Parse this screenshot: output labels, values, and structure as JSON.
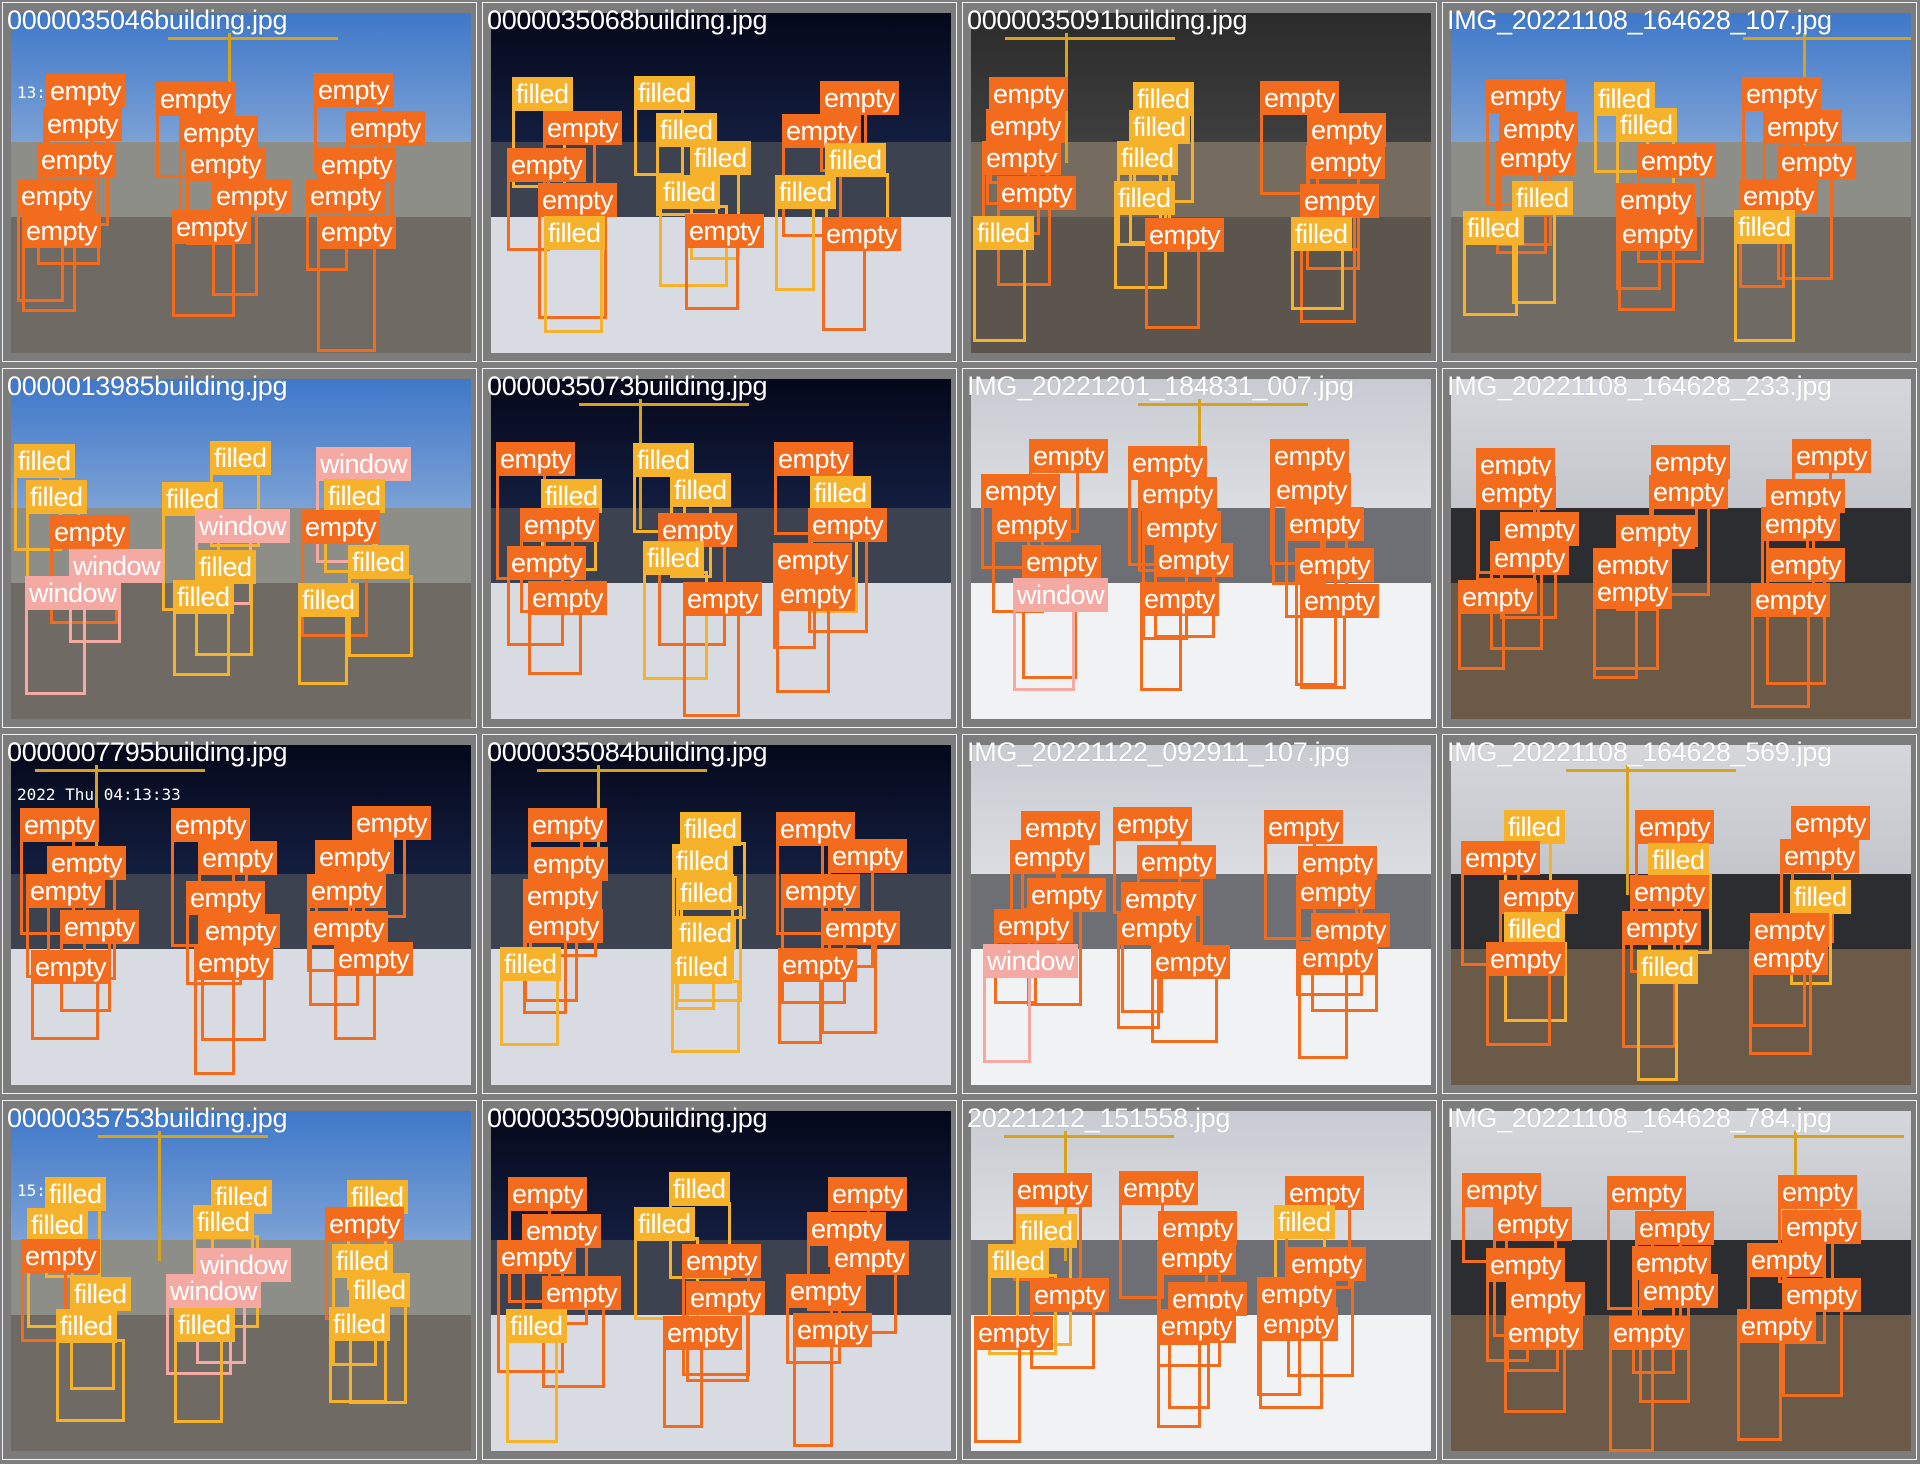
{
  "mosaic": {
    "colors": {
      "empty": "#f36b1c",
      "filled": "#f6b22a",
      "window": "#f4a9a3",
      "background": "#7f7f7f"
    },
    "cells": [
      {
        "file": "0000035046building.jpg",
        "scene": "day",
        "stamp": "13:34:19"
      },
      {
        "file": "0000035068building.jpg",
        "scene": "night",
        "stamp": ""
      },
      {
        "file": "0000035091building.jpg",
        "scene": "indoor",
        "stamp": ""
      },
      {
        "file": "IMG_20221108_164628_107.jpg",
        "scene": "day",
        "stamp": ""
      },
      {
        "file": "0000013985building.jpg",
        "scene": "day",
        "stamp": ""
      },
      {
        "file": "0000035073building.jpg",
        "scene": "night",
        "stamp": ""
      },
      {
        "file": "IMG_20221201_184831_007.jpg",
        "scene": "snow",
        "stamp": ""
      },
      {
        "file": "IMG_20221108_164628_233.jpg",
        "scene": "dusk",
        "stamp": ""
      },
      {
        "file": "0000007795building.jpg",
        "scene": "night",
        "stamp": "2022 Thu 04:13:33"
      },
      {
        "file": "0000035084building.jpg",
        "scene": "night",
        "stamp": ""
      },
      {
        "file": "IMG_20221122_092911_107.jpg",
        "scene": "snow",
        "stamp": ""
      },
      {
        "file": "IMG_20221108_164628_569.jpg",
        "scene": "dusk",
        "stamp": ""
      },
      {
        "file": "0000035753building.jpg",
        "scene": "day",
        "stamp": "15:32:17"
      },
      {
        "file": "0000035090building.jpg",
        "scene": "night",
        "stamp": ""
      },
      {
        "file": "20221212_151558.jpg",
        "scene": "snow",
        "stamp": ""
      },
      {
        "file": "IMG_20221108_164628_784.jpg",
        "scene": "dusk",
        "stamp": ""
      }
    ],
    "labels": [
      [
        {
          "t": "empty"
        },
        {
          "t": "empty"
        },
        {
          "t": "empty"
        },
        {
          "t": "empty"
        },
        {
          "t": "empty"
        },
        {
          "t": "empty"
        },
        {
          "t": "empty"
        },
        {
          "t": "empty"
        },
        {
          "t": "empty"
        },
        {
          "t": "empty"
        },
        {
          "t": "empty"
        },
        {
          "t": "empty"
        },
        {
          "t": "empty"
        },
        {
          "t": "empty"
        },
        {
          "t": "empty"
        }
      ],
      [
        {
          "t": "filled"
        },
        {
          "t": "empty"
        },
        {
          "t": "empty"
        },
        {
          "t": "empty"
        },
        {
          "t": "filled"
        },
        {
          "t": "filled"
        },
        {
          "t": "filled"
        },
        {
          "t": "filled"
        },
        {
          "t": "filled"
        },
        {
          "t": "empty"
        },
        {
          "t": "empty"
        },
        {
          "t": "empty"
        },
        {
          "t": "filled"
        },
        {
          "t": "filled"
        },
        {
          "t": "empty"
        }
      ],
      [
        {
          "t": "empty"
        },
        {
          "t": "empty"
        },
        {
          "t": "empty"
        },
        {
          "t": "empty"
        },
        {
          "t": "filled"
        },
        {
          "t": "filled"
        },
        {
          "t": "filled"
        },
        {
          "t": "filled"
        },
        {
          "t": "filled"
        },
        {
          "t": "empty"
        },
        {
          "t": "empty"
        },
        {
          "t": "empty"
        },
        {
          "t": "empty"
        },
        {
          "t": "empty"
        },
        {
          "t": "filled"
        }
      ],
      [
        {
          "t": "empty"
        },
        {
          "t": "empty"
        },
        {
          "t": "empty"
        },
        {
          "t": "filled"
        },
        {
          "t": "filled"
        },
        {
          "t": "filled"
        },
        {
          "t": "filled"
        },
        {
          "t": "empty"
        },
        {
          "t": "empty"
        },
        {
          "t": "empty"
        },
        {
          "t": "empty"
        },
        {
          "t": "empty"
        },
        {
          "t": "empty"
        },
        {
          "t": "empty"
        },
        {
          "t": "filled"
        }
      ],
      [
        {
          "t": "filled"
        },
        {
          "t": "filled"
        },
        {
          "t": "empty"
        },
        {
          "t": "window"
        },
        {
          "t": "window"
        },
        {
          "t": "filled"
        },
        {
          "t": "filled"
        },
        {
          "t": "window"
        },
        {
          "t": "filled"
        },
        {
          "t": "filled"
        },
        {
          "t": "window"
        },
        {
          "t": "filled"
        },
        {
          "t": "empty"
        },
        {
          "t": "filled"
        },
        {
          "t": "filled"
        }
      ],
      [
        {
          "t": "empty"
        },
        {
          "t": "filled"
        },
        {
          "t": "empty"
        },
        {
          "t": "empty"
        },
        {
          "t": "empty"
        },
        {
          "t": "filled"
        },
        {
          "t": "filled"
        },
        {
          "t": "empty"
        },
        {
          "t": "filled"
        },
        {
          "t": "empty"
        },
        {
          "t": "empty"
        },
        {
          "t": "filled"
        },
        {
          "t": "empty"
        },
        {
          "t": "empty"
        },
        {
          "t": "empty"
        }
      ],
      [
        {
          "t": "empty"
        },
        {
          "t": "empty"
        },
        {
          "t": "empty"
        },
        {
          "t": "empty"
        },
        {
          "t": "window"
        },
        {
          "t": "empty"
        },
        {
          "t": "empty"
        },
        {
          "t": "empty"
        },
        {
          "t": "empty"
        },
        {
          "t": "empty"
        },
        {
          "t": "empty"
        },
        {
          "t": "empty"
        },
        {
          "t": "empty"
        },
        {
          "t": "empty"
        },
        {
          "t": "empty"
        }
      ],
      [
        {
          "t": "empty"
        },
        {
          "t": "empty"
        },
        {
          "t": "empty"
        },
        {
          "t": "empty"
        },
        {
          "t": "empty"
        },
        {
          "t": "empty"
        },
        {
          "t": "empty"
        },
        {
          "t": "empty"
        },
        {
          "t": "empty"
        },
        {
          "t": "empty"
        },
        {
          "t": "empty"
        },
        {
          "t": "empty"
        },
        {
          "t": "empty"
        },
        {
          "t": "empty"
        },
        {
          "t": "empty"
        }
      ],
      [
        {
          "t": "empty"
        },
        {
          "t": "empty"
        },
        {
          "t": "empty"
        },
        {
          "t": "empty"
        },
        {
          "t": "empty"
        },
        {
          "t": "empty"
        },
        {
          "t": "empty"
        },
        {
          "t": "empty"
        },
        {
          "t": "empty"
        },
        {
          "t": "empty"
        },
        {
          "t": "empty"
        },
        {
          "t": "empty"
        },
        {
          "t": "empty"
        },
        {
          "t": "empty"
        },
        {
          "t": "empty"
        }
      ],
      [
        {
          "t": "empty"
        },
        {
          "t": "empty"
        },
        {
          "t": "empty"
        },
        {
          "t": "empty"
        },
        {
          "t": "filled"
        },
        {
          "t": "filled"
        },
        {
          "t": "filled"
        },
        {
          "t": "filled"
        },
        {
          "t": "filled"
        },
        {
          "t": "filled"
        },
        {
          "t": "empty"
        },
        {
          "t": "empty"
        },
        {
          "t": "empty"
        },
        {
          "t": "empty"
        },
        {
          "t": "empty"
        }
      ],
      [
        {
          "t": "empty"
        },
        {
          "t": "empty"
        },
        {
          "t": "empty"
        },
        {
          "t": "empty"
        },
        {
          "t": "window"
        },
        {
          "t": "empty"
        },
        {
          "t": "empty"
        },
        {
          "t": "empty"
        },
        {
          "t": "empty"
        },
        {
          "t": "empty"
        },
        {
          "t": "empty"
        },
        {
          "t": "empty"
        },
        {
          "t": "empty"
        },
        {
          "t": "empty"
        },
        {
          "t": "empty"
        }
      ],
      [
        {
          "t": "filled"
        },
        {
          "t": "empty"
        },
        {
          "t": "empty"
        },
        {
          "t": "filled"
        },
        {
          "t": "empty"
        },
        {
          "t": "empty"
        },
        {
          "t": "filled"
        },
        {
          "t": "empty"
        },
        {
          "t": "empty"
        },
        {
          "t": "filled"
        },
        {
          "t": "empty"
        },
        {
          "t": "empty"
        },
        {
          "t": "filled"
        },
        {
          "t": "empty"
        },
        {
          "t": "empty"
        }
      ],
      [
        {
          "t": "filled"
        },
        {
          "t": "filled"
        },
        {
          "t": "empty"
        },
        {
          "t": "filled"
        },
        {
          "t": "filled"
        },
        {
          "t": "filled"
        },
        {
          "t": "filled"
        },
        {
          "t": "window"
        },
        {
          "t": "window"
        },
        {
          "t": "filled"
        },
        {
          "t": "filled"
        },
        {
          "t": "empty"
        },
        {
          "t": "filled"
        },
        {
          "t": "filled"
        },
        {
          "t": "filled"
        }
      ],
      [
        {
          "t": "empty"
        },
        {
          "t": "empty"
        },
        {
          "t": "empty"
        },
        {
          "t": "empty"
        },
        {
          "t": "filled"
        },
        {
          "t": "filled"
        },
        {
          "t": "filled"
        },
        {
          "t": "empty"
        },
        {
          "t": "empty"
        },
        {
          "t": "empty"
        },
        {
          "t": "empty"
        },
        {
          "t": "empty"
        },
        {
          "t": "empty"
        },
        {
          "t": "empty"
        },
        {
          "t": "empty"
        }
      ],
      [
        {
          "t": "empty"
        },
        {
          "t": "filled"
        },
        {
          "t": "filled"
        },
        {
          "t": "empty"
        },
        {
          "t": "empty"
        },
        {
          "t": "empty"
        },
        {
          "t": "empty"
        },
        {
          "t": "empty"
        },
        {
          "t": "empty"
        },
        {
          "t": "empty"
        },
        {
          "t": "empty"
        },
        {
          "t": "filled"
        },
        {
          "t": "empty"
        },
        {
          "t": "empty"
        },
        {
          "t": "empty"
        }
      ],
      [
        {
          "t": "empty"
        },
        {
          "t": "empty"
        },
        {
          "t": "empty"
        },
        {
          "t": "empty"
        },
        {
          "t": "empty"
        },
        {
          "t": "empty"
        },
        {
          "t": "empty"
        },
        {
          "t": "empty"
        },
        {
          "t": "empty"
        },
        {
          "t": "empty"
        },
        {
          "t": "empty"
        },
        {
          "t": "empty"
        },
        {
          "t": "empty"
        },
        {
          "t": "empty"
        },
        {
          "t": "empty"
        }
      ]
    ]
  }
}
